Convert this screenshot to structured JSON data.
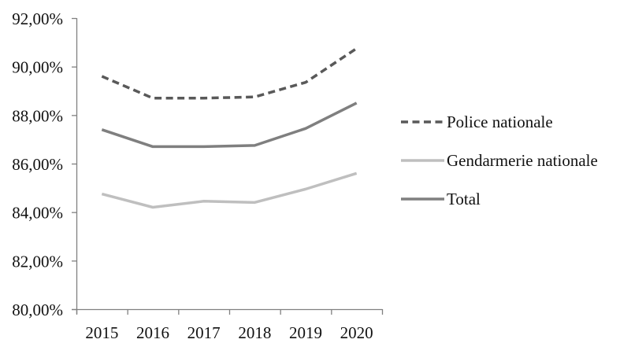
{
  "chart_data": {
    "type": "line",
    "title": "",
    "xlabel": "",
    "ylabel": "",
    "categories": [
      "2015",
      "2016",
      "2017",
      "2018",
      "2019",
      "2020"
    ],
    "series": [
      {
        "name": "Police nationale",
        "values": [
          89.6,
          88.7,
          88.7,
          88.75,
          89.35,
          90.75
        ],
        "color": "#595959",
        "line_style": "dashed"
      },
      {
        "name": "Gendarmerie nationale",
        "values": [
          84.75,
          84.2,
          84.45,
          84.4,
          84.95,
          85.6
        ],
        "color": "#bfbfbf",
        "line_style": "solid"
      },
      {
        "name": "Total",
        "values": [
          87.4,
          86.7,
          86.7,
          86.75,
          87.45,
          88.5
        ],
        "color": "#7f7f7f",
        "line_style": "solid"
      }
    ],
    "ylim": [
      80,
      92
    ],
    "ytick_step": 2,
    "ytick_labels": [
      "80,00%",
      "82,00%",
      "84,00%",
      "86,00%",
      "88,00%",
      "90,00%",
      "92,00%"
    ],
    "grid": false,
    "legend_position": "right",
    "axis_color": "#808080",
    "text_color": "#111111"
  }
}
